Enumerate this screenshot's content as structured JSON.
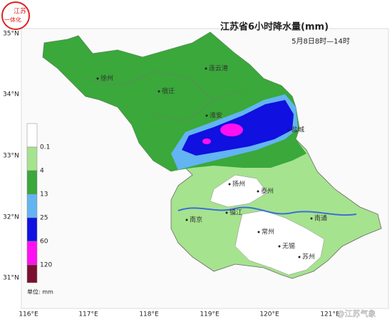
{
  "title": "江苏省6小时降水量(mm)",
  "subtitle": "5月8日8时—14时",
  "logo": [
    "江苏",
    "一体化"
  ],
  "watermark": "@江苏气象",
  "lat_labels": [
    "35°N",
    "34°N",
    "33°N",
    "32°N",
    "31°N"
  ],
  "lon_labels": [
    "116°E",
    "117°E",
    "118°E",
    "119°E",
    "120°E",
    "121°E"
  ],
  "cities": [
    "徐州",
    "连云港",
    "宿迁",
    "淮安",
    "盐城",
    "扬州",
    "泰州",
    "南京",
    "镇江",
    "南通",
    "常州",
    "无锡",
    "苏州"
  ],
  "legend": {
    "items": [
      {
        "label": "0.1",
        "color": "#ffffff"
      },
      {
        "label": "4",
        "color": "#a6e38e"
      },
      {
        "label": "13",
        "color": "#3aa83a"
      },
      {
        "label": "25",
        "color": "#62b4f2"
      },
      {
        "label": "60",
        "color": "#1010e0"
      },
      {
        "label": "120",
        "color": "#ff10f0"
      }
    ],
    "top_color": "#7a1030",
    "unit": "单位: mm"
  }
}
